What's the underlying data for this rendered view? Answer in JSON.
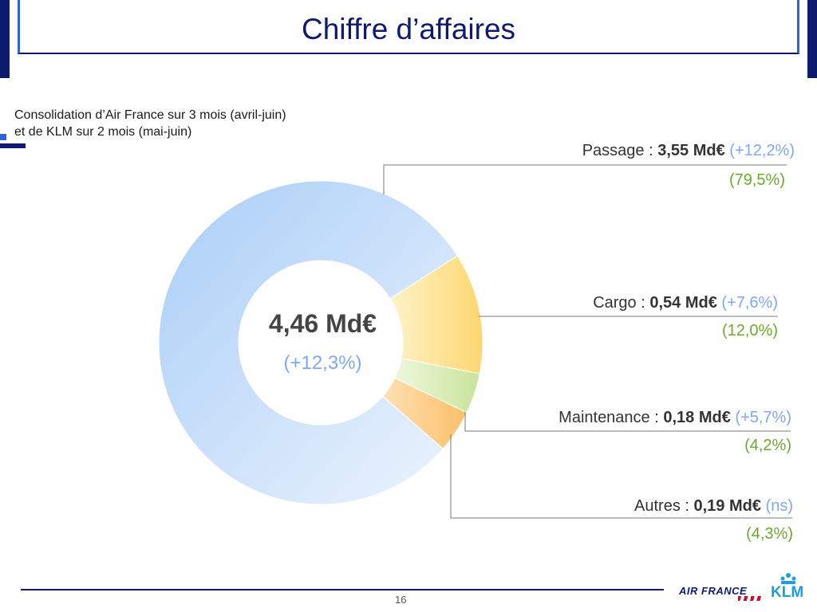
{
  "header": {
    "title": "Chiffre d’affaires"
  },
  "subtitle": {
    "line1": "Consolidation d’Air France sur 3 mois (avril-juin)",
    "line2": "et de KLM sur 2 mois (mai-juin)"
  },
  "center": {
    "total": "4,46 Md€",
    "growth": "(+12,3%)"
  },
  "segments": [
    {
      "name": "Passage : ",
      "value_text": "3,55 Md€",
      "growth": "(+12,2%)",
      "share_text": "(79,5%)"
    },
    {
      "name": "Cargo : ",
      "value_text": "0,54 Md€",
      "growth": "(+7,6%)",
      "share_text": "(12,0%)"
    },
    {
      "name": "Maintenance : ",
      "value_text": "0,18 Md€",
      "growth": "(+5,7%)",
      "share_text": "(4,2%)"
    },
    {
      "name": "Autres : ",
      "value_text": "0,19 Md€",
      "growth": "(ns)",
      "share_text": "(4,3%)"
    }
  ],
  "chart_data": {
    "type": "pie",
    "donut": true,
    "categories": [
      "Passage",
      "Cargo",
      "Maintenance",
      "Autres"
    ],
    "values": [
      3.55,
      0.54,
      0.18,
      0.19
    ],
    "shares_pct": [
      79.5,
      12.0,
      4.2,
      4.3
    ],
    "growth_pct": [
      "+12,2%",
      "+7,6%",
      "+5,7%",
      "ns"
    ],
    "unit": "Md€",
    "total": 4.46,
    "colors": [
      "#d4e6fb",
      "#fde6a4",
      "#d8efb8",
      "#fccf8c"
    ],
    "title": "",
    "legend": "none (callout labels on right)"
  },
  "footer": {
    "page_number": "16",
    "logo_af": "AIR FRANCE",
    "logo_klm": "KLM"
  },
  "colors": {
    "title": "#0d1a6e",
    "accent_blue": "#2f63d8",
    "growth": "#7fa8f0",
    "share": "#6aaa2a"
  }
}
